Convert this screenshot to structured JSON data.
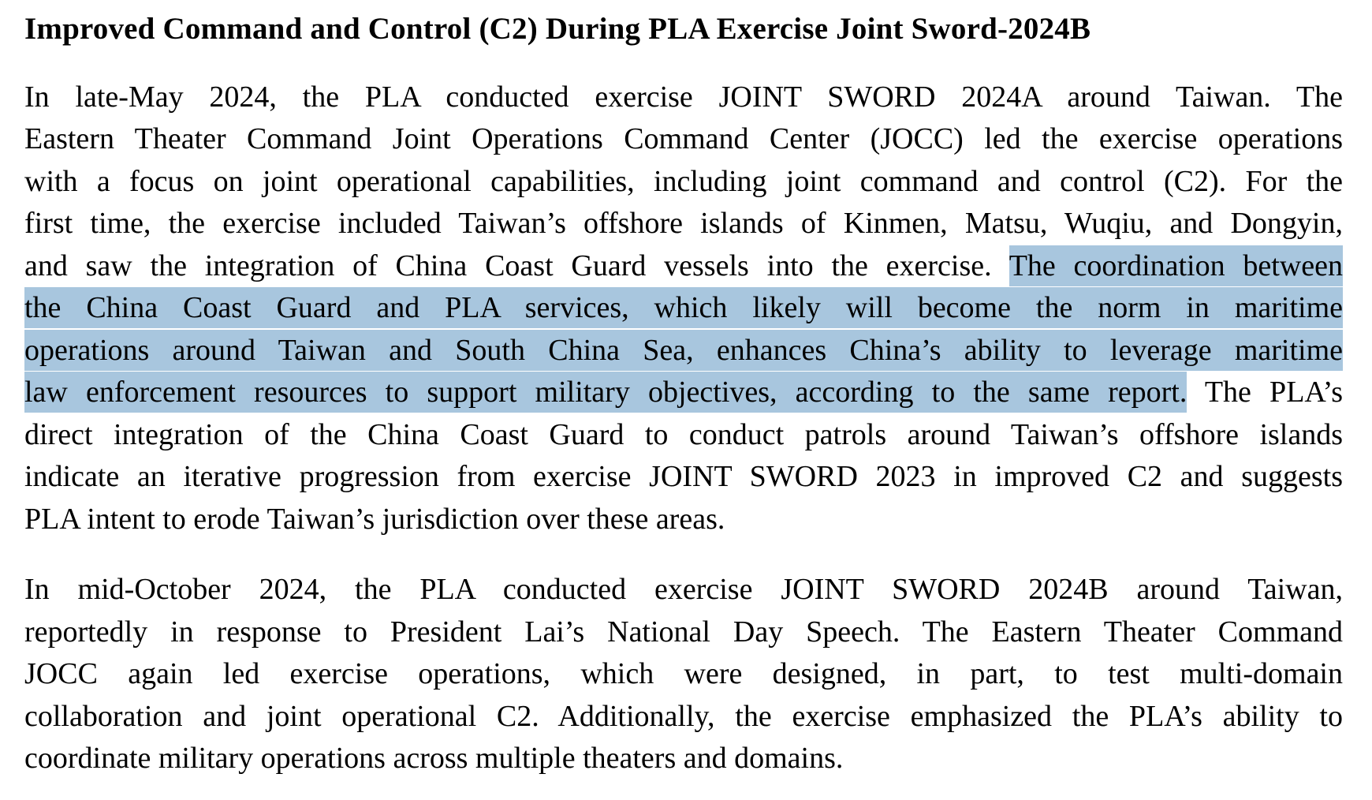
{
  "page": {
    "background_color": "#ffffff",
    "text_color": "#000000",
    "highlight_color": "#a8c6de"
  },
  "document": {
    "heading": "Improved Command and Control (C2) During PLA Exercise Joint Sword-2024B",
    "paragraphs": [
      {
        "lines": [
          [
            {
              "t": "In late-May 2024, the PLA conducted exercise JOINT SWORD 2024A around Taiwan. The",
              "h": false
            }
          ],
          [
            {
              "t": "Eastern Theater Command Joint Operations Command Center (JOCC) led the exercise operations",
              "h": false
            }
          ],
          [
            {
              "t": "with a focus on joint operational capabilities, including joint command and control (C2). For the",
              "h": false
            }
          ],
          [
            {
              "t": "first time, the exercise included Taiwan’s offshore islands of Kinmen, Matsu, Wuqiu, and Dongyin,",
              "h": false
            }
          ],
          [
            {
              "t": "and saw the integration of China Coast Guard vessels into the exercise. ",
              "h": false
            },
            {
              "t": "The coordination between",
              "h": true
            }
          ],
          [
            {
              "t": "the China Coast Guard and PLA services, which likely will become the norm in maritime",
              "h": true
            }
          ],
          [
            {
              "t": "operations around Taiwan and South China Sea, enhances China’s ability to leverage maritime",
              "h": true
            }
          ],
          [
            {
              "t": "law enforcement resources to support military objectives, according to the same report.",
              "h": true
            },
            {
              "t": " The PLA’s",
              "h": false
            }
          ],
          [
            {
              "t": "direct integration of the China Coast Guard to conduct patrols around Taiwan’s offshore islands",
              "h": false
            }
          ],
          [
            {
              "t": "indicate an iterative progression from exercise JOINT SWORD 2023 in improved C2 and suggests",
              "h": false
            }
          ],
          [
            {
              "t": "PLA intent to erode Taiwan’s jurisdiction over these areas.",
              "h": false
            }
          ]
        ]
      },
      {
        "lines": [
          [
            {
              "t": "In mid-October 2024, the PLA conducted exercise JOINT SWORD 2024B around Taiwan,",
              "h": false
            }
          ],
          [
            {
              "t": "reportedly in response to President Lai’s National Day Speech. The Eastern Theater Command",
              "h": false
            }
          ],
          [
            {
              "t": "JOCC again led exercise operations, which were designed, in part, to test multi-domain",
              "h": false
            }
          ],
          [
            {
              "t": "collaboration and joint operational C2. Additionally, the exercise emphasized the PLA’s ability to",
              "h": false
            }
          ],
          [
            {
              "t": "coordinate military operations across multiple theaters and domains.",
              "h": false
            }
          ]
        ]
      }
    ]
  }
}
